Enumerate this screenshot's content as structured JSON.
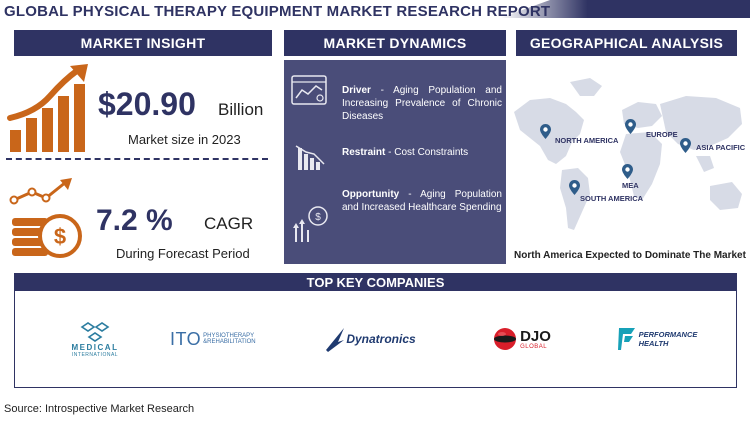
{
  "title": "GLOBAL PHYSICAL THERAPY EQUIPMENT MARKET RESEARCH REPORT",
  "sections": {
    "insight": "MARKET INSIGHT",
    "dynamics": "MARKET DYNAMICS",
    "geography": "GEOGRAPHICAL ANALYSIS",
    "companies": "TOP KEY COMPANIES"
  },
  "insight": {
    "market_value": "$20.90",
    "market_unit": "Billion",
    "market_caption": "Market size in 2023",
    "cagr_value": "7.2 %",
    "cagr_unit": "CAGR",
    "cagr_caption": "During Forecast Period"
  },
  "dynamics": {
    "driver_label": "Driver",
    "driver_text": "Aging Population and Increasing Prevalence of Chronic Diseases",
    "restraint_label": "Restraint",
    "restraint_text": "Cost Constraints",
    "opportunity_label": "Opportunity",
    "opportunity_text": "Aging Population and Increased Healthcare Spending"
  },
  "geography": {
    "regions": [
      "NORTH AMERICA",
      "EUROPE",
      "ASIA PACIFIC",
      "MEA",
      "SOUTH AMERICA"
    ],
    "caption": "North America Expected to Dominate The Market"
  },
  "companies": {
    "btl": {
      "name": "MEDICAL",
      "sub": "INTERNATIONAL"
    },
    "ito": {
      "name": "ITO",
      "sub1": "PHYSIOTHERAPY",
      "sub2": "&REHABILITATION"
    },
    "dynatronics": {
      "name": "Dynatronics"
    },
    "djo": {
      "name": "DJO",
      "sub": "GLOBAL"
    },
    "performance": {
      "line1": "PERFORMANCE",
      "line2": "HEALTH"
    }
  },
  "source": "Source: Introspective Market Research",
  "colors": {
    "navy": "#2f3363",
    "panel": "#4a4d79",
    "orange": "#c9661a",
    "red": "#d91e2a",
    "teal": "#17a1b8"
  }
}
